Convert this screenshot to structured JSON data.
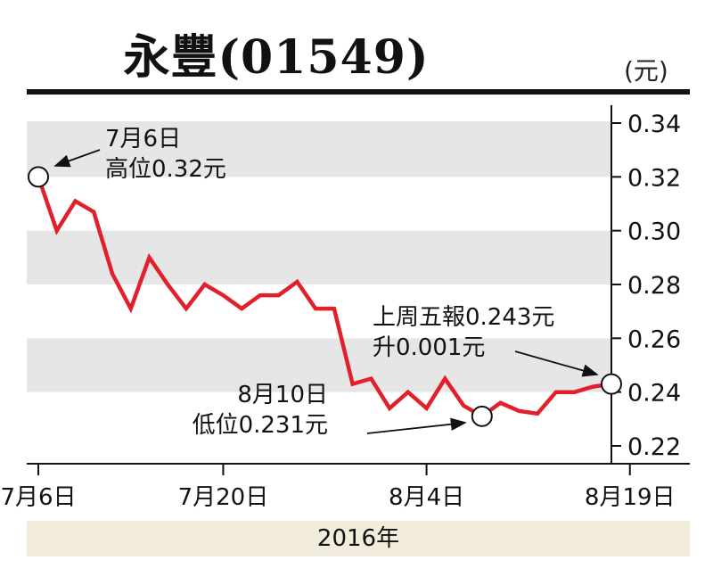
{
  "chart_data": {
    "type": "line",
    "title": "永豐(01549)",
    "unit": "(元)",
    "year_label": "2016年",
    "x_ticks": [
      "7月6日",
      "7月20日",
      "8月4日",
      "8月19日"
    ],
    "x_tick_index": [
      0,
      10,
      21,
      32
    ],
    "y_ticks": [
      "0.34",
      "0.32",
      "0.30",
      "0.28",
      "0.26",
      "0.24",
      "0.22"
    ],
    "ylim": [
      0.22,
      0.34
    ],
    "grid": true,
    "series": [
      {
        "color": "#e2202b",
        "values": [
          0.32,
          0.3,
          0.311,
          0.307,
          0.284,
          0.271,
          0.29,
          0.28,
          0.271,
          0.28,
          0.276,
          0.271,
          0.276,
          0.276,
          0.281,
          0.271,
          0.271,
          0.243,
          0.245,
          0.234,
          0.24,
          0.234,
          0.245,
          0.235,
          0.231,
          0.236,
          0.233,
          0.232,
          0.24,
          0.24,
          0.242,
          0.243
        ]
      }
    ],
    "annotations": [
      {
        "index": 0,
        "value": 0.32,
        "lines": [
          "7月6日",
          "高位0.32元"
        ]
      },
      {
        "index": 24,
        "value": 0.231,
        "lines": [
          "8月10日",
          "低位0.231元"
        ]
      },
      {
        "index": 31,
        "value": 0.243,
        "lines": [
          "上周五報0.243元",
          "升0.001元"
        ]
      }
    ]
  }
}
